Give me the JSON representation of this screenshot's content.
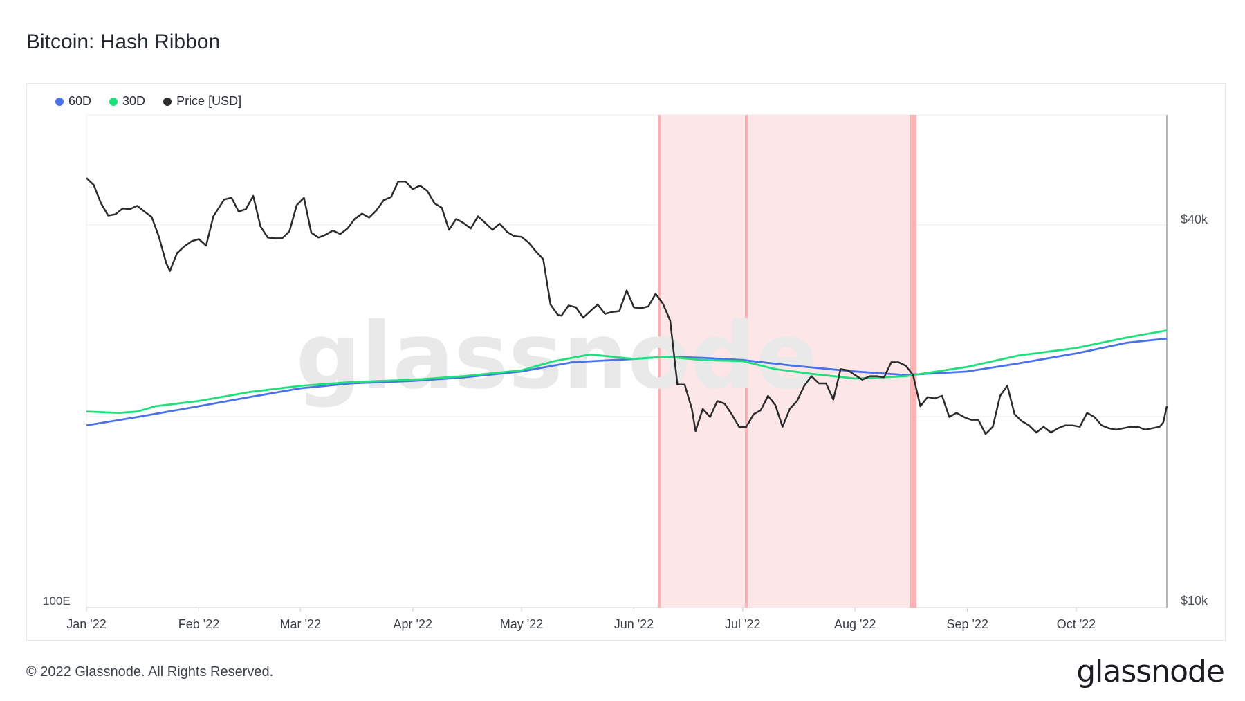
{
  "title": "Bitcoin: Hash Ribbon",
  "footer": "© 2022 Glassnode. All Rights Reserved.",
  "brand": "glassnode",
  "watermark": "glassnode",
  "colors": {
    "series_60d": "#4a72e8",
    "series_30d": "#1fe07a",
    "price": "#2b2b2b",
    "capitulation_band": "#fde6e8",
    "capitulation_edge": "#f7b3b6"
  },
  "chart_data": {
    "type": "line",
    "title": "Bitcoin: Hash Ribbon",
    "legend_position": "top-left",
    "grid": true,
    "x_tick_labels": [
      "Jan '22",
      "Feb '22",
      "Mar '22",
      "Apr '22",
      "May '22",
      "Jun '22",
      "Jul '22",
      "Aug '22",
      "Sep '22",
      "Oct '22"
    ],
    "x_range": [
      "2022-01-01",
      "2022-10-26"
    ],
    "y_left": {
      "label": "",
      "tick_labels": [
        "100E"
      ],
      "scale": "log"
    },
    "y_right": {
      "label": "",
      "tick_labels": [
        "$40k",
        "$10k"
      ],
      "scale": "log",
      "ylim": [
        10000,
        60000
      ]
    },
    "capitulation_periods": [
      {
        "start": "2022-06-08",
        "end": "2022-07-02"
      },
      {
        "start": "2022-07-02",
        "end": "2022-08-18"
      }
    ],
    "capitulation_markers": [
      "2022-06-08",
      "2022-07-02",
      "2022-08-17"
    ],
    "series": [
      {
        "name": "60D",
        "axis": "left",
        "color": "#4a72e8",
        "points": [
          [
            "2022-01-01",
            194
          ],
          [
            "2022-01-15",
            200
          ],
          [
            "2022-02-01",
            208
          ],
          [
            "2022-02-15",
            215
          ],
          [
            "2022-03-01",
            222
          ],
          [
            "2022-03-15",
            226
          ],
          [
            "2022-04-01",
            228
          ],
          [
            "2022-04-15",
            231
          ],
          [
            "2022-05-01",
            236
          ],
          [
            "2022-05-15",
            244
          ],
          [
            "2022-06-01",
            247
          ],
          [
            "2022-06-10",
            249
          ],
          [
            "2022-06-20",
            248
          ],
          [
            "2022-07-01",
            246
          ],
          [
            "2022-07-15",
            241
          ],
          [
            "2022-08-01",
            236
          ],
          [
            "2022-08-15",
            233
          ],
          [
            "2022-09-01",
            236
          ],
          [
            "2022-09-15",
            243
          ],
          [
            "2022-10-01",
            252
          ],
          [
            "2022-10-15",
            262
          ],
          [
            "2022-10-26",
            266
          ]
        ]
      },
      {
        "name": "30D",
        "axis": "left",
        "color": "#1fe07a",
        "points": [
          [
            "2022-01-01",
            204
          ],
          [
            "2022-01-10",
            203
          ],
          [
            "2022-01-15",
            204
          ],
          [
            "2022-01-20",
            208
          ],
          [
            "2022-02-01",
            212
          ],
          [
            "2022-02-15",
            219
          ],
          [
            "2022-03-01",
            224
          ],
          [
            "2022-03-15",
            227
          ],
          [
            "2022-04-01",
            229
          ],
          [
            "2022-04-15",
            232
          ],
          [
            "2022-05-01",
            237
          ],
          [
            "2022-05-10",
            245
          ],
          [
            "2022-05-20",
            251
          ],
          [
            "2022-06-01",
            247
          ],
          [
            "2022-06-10",
            249
          ],
          [
            "2022-06-20",
            246
          ],
          [
            "2022-07-01",
            245
          ],
          [
            "2022-07-10",
            238
          ],
          [
            "2022-07-20",
            234
          ],
          [
            "2022-08-01",
            230
          ],
          [
            "2022-08-15",
            232
          ],
          [
            "2022-09-01",
            240
          ],
          [
            "2022-09-15",
            250
          ],
          [
            "2022-10-01",
            257
          ],
          [
            "2022-10-15",
            267
          ],
          [
            "2022-10-26",
            274
          ]
        ]
      },
      {
        "name": "Price [USD]",
        "axis": "right",
        "color": "#2b2b2b",
        "points": [
          [
            "2022-01-01",
            47700
          ],
          [
            "2022-01-03",
            46500
          ],
          [
            "2022-01-05",
            43500
          ],
          [
            "2022-01-07",
            41600
          ],
          [
            "2022-01-09",
            41800
          ],
          [
            "2022-01-11",
            42700
          ],
          [
            "2022-01-13",
            42600
          ],
          [
            "2022-01-15",
            43100
          ],
          [
            "2022-01-17",
            42200
          ],
          [
            "2022-01-19",
            41400
          ],
          [
            "2022-01-21",
            38500
          ],
          [
            "2022-01-23",
            35000
          ],
          [
            "2022-01-24",
            34000
          ],
          [
            "2022-01-26",
            36300
          ],
          [
            "2022-01-28",
            37200
          ],
          [
            "2022-01-30",
            37900
          ],
          [
            "2022-02-01",
            38200
          ],
          [
            "2022-02-03",
            37300
          ],
          [
            "2022-02-05",
            41500
          ],
          [
            "2022-02-08",
            44100
          ],
          [
            "2022-02-10",
            44400
          ],
          [
            "2022-02-12",
            42200
          ],
          [
            "2022-02-14",
            42600
          ],
          [
            "2022-02-16",
            44700
          ],
          [
            "2022-02-18",
            40000
          ],
          [
            "2022-02-20",
            38400
          ],
          [
            "2022-02-22",
            38300
          ],
          [
            "2022-02-24",
            38300
          ],
          [
            "2022-02-26",
            39300
          ],
          [
            "2022-02-28",
            43200
          ],
          [
            "2022-03-02",
            44400
          ],
          [
            "2022-03-04",
            39100
          ],
          [
            "2022-03-06",
            38400
          ],
          [
            "2022-03-08",
            38800
          ],
          [
            "2022-03-10",
            39400
          ],
          [
            "2022-03-12",
            38900
          ],
          [
            "2022-03-14",
            39700
          ],
          [
            "2022-03-16",
            41100
          ],
          [
            "2022-03-18",
            41900
          ],
          [
            "2022-03-20",
            41300
          ],
          [
            "2022-03-22",
            42400
          ],
          [
            "2022-03-24",
            44000
          ],
          [
            "2022-03-26",
            44500
          ],
          [
            "2022-03-28",
            47100
          ],
          [
            "2022-03-30",
            47100
          ],
          [
            "2022-04-01",
            45800
          ],
          [
            "2022-04-03",
            46400
          ],
          [
            "2022-04-05",
            45500
          ],
          [
            "2022-04-07",
            43500
          ],
          [
            "2022-04-09",
            42800
          ],
          [
            "2022-04-11",
            39500
          ],
          [
            "2022-04-13",
            41100
          ],
          [
            "2022-04-15",
            40500
          ],
          [
            "2022-04-17",
            39700
          ],
          [
            "2022-04-19",
            41500
          ],
          [
            "2022-04-21",
            40500
          ],
          [
            "2022-04-23",
            39500
          ],
          [
            "2022-04-25",
            40400
          ],
          [
            "2022-04-27",
            39200
          ],
          [
            "2022-04-29",
            38600
          ],
          [
            "2022-05-01",
            38500
          ],
          [
            "2022-05-03",
            37700
          ],
          [
            "2022-05-05",
            36500
          ],
          [
            "2022-05-07",
            35500
          ],
          [
            "2022-05-09",
            30100
          ],
          [
            "2022-05-11",
            29000
          ],
          [
            "2022-05-12",
            28900
          ],
          [
            "2022-05-14",
            30000
          ],
          [
            "2022-05-16",
            29800
          ],
          [
            "2022-05-18",
            28700
          ],
          [
            "2022-05-20",
            29400
          ],
          [
            "2022-05-22",
            30100
          ],
          [
            "2022-05-24",
            29100
          ],
          [
            "2022-05-26",
            29300
          ],
          [
            "2022-05-28",
            29400
          ],
          [
            "2022-05-30",
            31700
          ],
          [
            "2022-06-01",
            29800
          ],
          [
            "2022-06-03",
            29700
          ],
          [
            "2022-06-05",
            29900
          ],
          [
            "2022-06-07",
            31300
          ],
          [
            "2022-06-09",
            30200
          ],
          [
            "2022-06-11",
            28400
          ],
          [
            "2022-06-13",
            22500
          ],
          [
            "2022-06-15",
            22500
          ],
          [
            "2022-06-17",
            20600
          ],
          [
            "2022-06-18",
            19000
          ],
          [
            "2022-06-20",
            20600
          ],
          [
            "2022-06-22",
            20000
          ],
          [
            "2022-06-24",
            21200
          ],
          [
            "2022-06-26",
            21000
          ],
          [
            "2022-06-28",
            20200
          ],
          [
            "2022-06-30",
            19300
          ],
          [
            "2022-07-02",
            19300
          ],
          [
            "2022-07-04",
            20200
          ],
          [
            "2022-07-06",
            20500
          ],
          [
            "2022-07-08",
            21600
          ],
          [
            "2022-07-10",
            20900
          ],
          [
            "2022-07-12",
            19300
          ],
          [
            "2022-07-14",
            20600
          ],
          [
            "2022-07-16",
            21200
          ],
          [
            "2022-07-18",
            22400
          ],
          [
            "2022-07-20",
            23200
          ],
          [
            "2022-07-22",
            22600
          ],
          [
            "2022-07-24",
            22600
          ],
          [
            "2022-07-26",
            21300
          ],
          [
            "2022-07-28",
            23800
          ],
          [
            "2022-07-30",
            23700
          ],
          [
            "2022-08-01",
            23300
          ],
          [
            "2022-08-03",
            22900
          ],
          [
            "2022-08-05",
            23200
          ],
          [
            "2022-08-07",
            23200
          ],
          [
            "2022-08-09",
            23100
          ],
          [
            "2022-08-11",
            24400
          ],
          [
            "2022-08-13",
            24400
          ],
          [
            "2022-08-15",
            24100
          ],
          [
            "2022-08-17",
            23300
          ],
          [
            "2022-08-19",
            20800
          ],
          [
            "2022-08-21",
            21500
          ],
          [
            "2022-08-23",
            21400
          ],
          [
            "2022-08-25",
            21600
          ],
          [
            "2022-08-27",
            20000
          ],
          [
            "2022-08-29",
            20300
          ],
          [
            "2022-08-31",
            20000
          ],
          [
            "2022-09-02",
            19800
          ],
          [
            "2022-09-04",
            19800
          ],
          [
            "2022-09-06",
            18800
          ],
          [
            "2022-09-08",
            19300
          ],
          [
            "2022-09-10",
            21600
          ],
          [
            "2022-09-12",
            22400
          ],
          [
            "2022-09-14",
            20200
          ],
          [
            "2022-09-16",
            19700
          ],
          [
            "2022-09-18",
            19400
          ],
          [
            "2022-09-20",
            18900
          ],
          [
            "2022-09-22",
            19300
          ],
          [
            "2022-09-24",
            18900
          ],
          [
            "2022-09-26",
            19200
          ],
          [
            "2022-09-28",
            19400
          ],
          [
            "2022-09-30",
            19400
          ],
          [
            "2022-10-02",
            19300
          ],
          [
            "2022-10-04",
            20300
          ],
          [
            "2022-10-06",
            20000
          ],
          [
            "2022-10-08",
            19400
          ],
          [
            "2022-10-10",
            19200
          ],
          [
            "2022-10-12",
            19100
          ],
          [
            "2022-10-14",
            19200
          ],
          [
            "2022-10-16",
            19300
          ],
          [
            "2022-10-18",
            19300
          ],
          [
            "2022-10-20",
            19100
          ],
          [
            "2022-10-22",
            19200
          ],
          [
            "2022-10-24",
            19300
          ],
          [
            "2022-10-25",
            19600
          ],
          [
            "2022-10-26",
            20800
          ]
        ]
      }
    ]
  }
}
